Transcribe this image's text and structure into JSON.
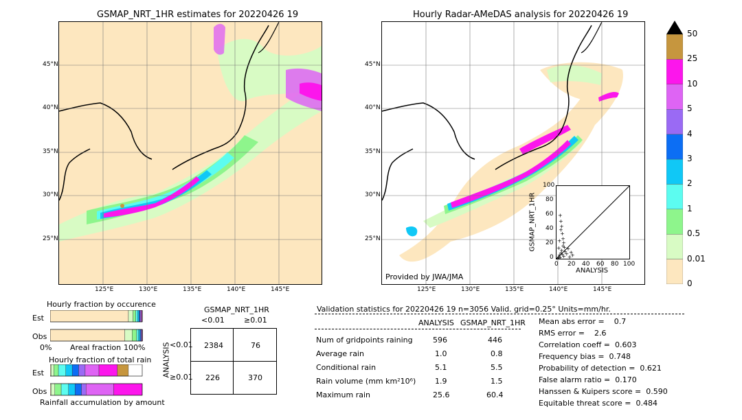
{
  "left_map": {
    "title": "GSMAP_NRT_1HR estimates for 20220426 19",
    "lat_labels": [
      "45°N",
      "40°N",
      "35°N",
      "30°N",
      "25°N"
    ],
    "lon_labels": [
      "125°E",
      "130°E",
      "135°E",
      "140°E",
      "145°E"
    ]
  },
  "right_map": {
    "title": "Hourly Radar-AMeDAS analysis for 20220426 19",
    "lat_labels": [
      "45°N",
      "40°N",
      "35°N",
      "30°N",
      "25°N"
    ],
    "lon_labels": [
      "125°E",
      "130°E",
      "135°E",
      "140°E",
      "145°E"
    ],
    "credit": "Provided by JWA/JMA"
  },
  "colorbar": {
    "labels": [
      "50",
      "25",
      "10",
      "5",
      "4",
      "3",
      "2",
      "1",
      "0.5",
      "0.01",
      "0"
    ],
    "colors": [
      "#fde7bf",
      "#d8fbc4",
      "#8ef58c",
      "#5cfcf0",
      "#10c8f6",
      "#0c6ef4",
      "#9a6af4",
      "#de64f4",
      "#fc16ec",
      "#c6963e"
    ],
    "extend_color": "#000000"
  },
  "scatter": {
    "ylabel": "GSMAP_NRT_1HR",
    "xlabel": "ANALYSIS",
    "ticks": [
      "0",
      "20",
      "40",
      "60",
      "80",
      "100"
    ]
  },
  "occurrence": {
    "title": "Hourly fraction by occurence",
    "rows": [
      "Est",
      "Obs"
    ],
    "axis_left": "0%",
    "axis_mid": "Areal fraction",
    "axis_right": "100%"
  },
  "total_rain": {
    "title": "Hourly fraction of total rain",
    "rows": [
      "Est",
      "Obs"
    ],
    "caption": "Rainfall accumulation by amount"
  },
  "contingency": {
    "title": "GSMAP_NRT_1HR",
    "col_lt": "<0.01",
    "col_ge": "≥0.01",
    "side_label": "ANALYSIS",
    "row_lt": "<0.01",
    "row_ge": "≥0.01",
    "cells": [
      "2384",
      "76",
      "226",
      "370"
    ]
  },
  "validation": {
    "header": "Validation statistics for 20220426 19  n=3056 Valid. grid=0.25° Units=mm/hr.",
    "col_analysis": "ANALYSIS",
    "col_gsmap": "GSMAP_NRT_1HR",
    "rows": [
      {
        "label": "Num of gridpoints raining",
        "analysis": "596",
        "gsmap": "446"
      },
      {
        "label": "Average rain",
        "analysis": "1.0",
        "gsmap": "0.8"
      },
      {
        "label": "Conditional rain",
        "analysis": "5.1",
        "gsmap": "5.5"
      },
      {
        "label": "Rain volume (mm km²10⁶)",
        "analysis": "1.9",
        "gsmap": "1.5"
      },
      {
        "label": "Maximum rain",
        "analysis": "25.6",
        "gsmap": "60.4"
      }
    ],
    "scores": [
      "Mean abs error =    0.7",
      "RMS error =    2.6",
      "Correlation coeff =  0.603",
      "Frequency bias =  0.748",
      "Probability of detection =  0.621",
      "False alarm ratio =  0.170",
      "Hanssen & Kuipers score =  0.590",
      "Equitable threat score =  0.484"
    ]
  },
  "chart_data": [
    {
      "type": "heatmap",
      "title": "GSMAP_NRT_1HR estimates for 20220426 19",
      "x_ticks": [
        "125°E",
        "130°E",
        "135°E",
        "140°E",
        "145°E"
      ],
      "y_ticks": [
        "45°N",
        "40°N",
        "35°N",
        "30°N",
        "25°N"
      ],
      "xlim": [
        120,
        150
      ],
      "ylim": [
        20,
        50
      ]
    },
    {
      "type": "heatmap",
      "title": "Hourly Radar-AMeDAS analysis for 20220426 19",
      "x_ticks": [
        "125°E",
        "130°E",
        "135°E",
        "140°E",
        "145°E"
      ],
      "y_ticks": [
        "45°N",
        "40°N",
        "35°N",
        "30°N",
        "25°N"
      ],
      "xlim": [
        120,
        150
      ],
      "ylim": [
        20,
        50
      ]
    },
    {
      "type": "scatter",
      "xlabel": "ANALYSIS",
      "ylabel": "GSMAP_NRT_1HR",
      "xlim": [
        0,
        100
      ],
      "ylim": [
        0,
        100
      ],
      "x": [
        2,
        3,
        4,
        5,
        6,
        7,
        8,
        9,
        10,
        12,
        14,
        16,
        18,
        20,
        22,
        5,
        6,
        7,
        8,
        9,
        10,
        11,
        4,
        3,
        6
      ],
      "y": [
        1,
        3,
        5,
        2,
        8,
        12,
        6,
        18,
        4,
        10,
        7,
        14,
        3,
        9,
        5,
        60,
        52,
        45,
        35,
        28,
        22,
        16,
        25,
        15,
        40
      ]
    },
    {
      "type": "bar",
      "title": "Hourly fraction by occurence",
      "categories": [
        "Est",
        "Obs"
      ],
      "series": [
        {
          "values": [
            0.85,
            0.81
          ]
        },
        {
          "values": [
            0.05,
            0.08
          ]
        },
        {
          "values": [
            0.03,
            0.05
          ]
        },
        {
          "values": [
            0.02,
            0.02
          ]
        },
        {
          "values": [
            0.015,
            0.015
          ]
        },
        {
          "values": [
            0.01,
            0.01
          ]
        },
        {
          "values": [
            0.01,
            0.01
          ]
        },
        {
          "values": [
            0.01,
            0.005
          ]
        },
        {
          "values": [
            0.005,
            0.004
          ]
        },
        {
          "values": [
            0.001,
            0.0
          ]
        }
      ]
    },
    {
      "type": "bar",
      "title": "Hourly fraction of total rain",
      "categories": [
        "Est",
        "Obs"
      ],
      "series": [
        {
          "values": [
            0.01,
            0.01
          ]
        },
        {
          "values": [
            0.03,
            0.04
          ]
        },
        {
          "values": [
            0.05,
            0.07
          ]
        },
        {
          "values": [
            0.08,
            0.08
          ]
        },
        {
          "values": [
            0.07,
            0.07
          ]
        },
        {
          "values": [
            0.07,
            0.07
          ]
        },
        {
          "values": [
            0.07,
            0.05
          ]
        },
        {
          "values": [
            0.15,
            0.3
          ]
        },
        {
          "values": [
            0.2,
            0.31
          ]
        },
        {
          "values": [
            0.12,
            0.0
          ]
        }
      ]
    }
  ]
}
